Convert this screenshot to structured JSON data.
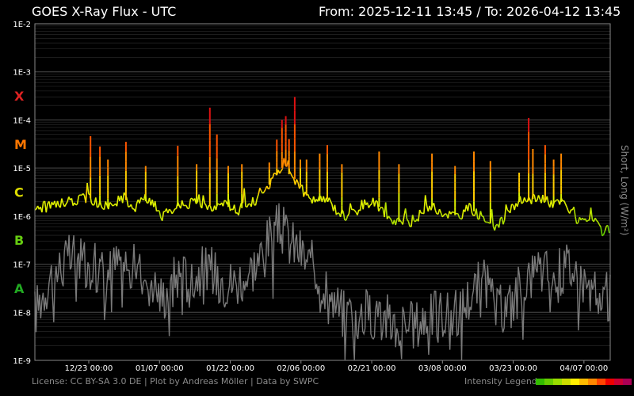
{
  "header": {
    "title": "GOES X-Ray Flux - UTC",
    "range": "From: 2025-12-11 13:45  /  To: 2026-04-12 13:45"
  },
  "footer": {
    "license": "License: CC BY-SA 3.0 DE | Plot by Andreas Möller | Data by SWPC",
    "legend_label": "Intensity Legend",
    "legend_colors": [
      "#33bb00",
      "#66cc00",
      "#99dd00",
      "#ccdd00",
      "#ffee00",
      "#ffbb00",
      "#ff8800",
      "#ff4400",
      "#ee0000",
      "#cc0033",
      "#aa0055"
    ]
  },
  "chart_data": {
    "type": "line",
    "ylabel": "Short, Long (W/m²)",
    "yscale": "log",
    "ylim": [
      "1E-9",
      "1E-2"
    ],
    "y_ticks": [
      "1E-2",
      "1E-3",
      "1E-4",
      "1E-5",
      "1E-6",
      "1E-7",
      "1E-8",
      "1E-9"
    ],
    "x_ticks": [
      "12/23 00:00",
      "01/07 00:00",
      "01/22 00:00",
      "02/06 00:00",
      "02/21 00:00",
      "03/08 00:00",
      "03/23 00:00",
      "04/07 00:00"
    ],
    "xlim": [
      "2025-12-11 13:45",
      "2026-04-12 13:45"
    ],
    "classes": [
      {
        "label": "X",
        "color": "#dd2222",
        "decade": "1E-4"
      },
      {
        "label": "M",
        "color": "#ff7700",
        "decade": "1E-5"
      },
      {
        "label": "C",
        "color": "#dddd00",
        "decade": "1E-6"
      },
      {
        "label": "B",
        "color": "#66cc11",
        "decade": "1E-7"
      },
      {
        "label": "A",
        "color": "#22aa22",
        "decade": "1E-8"
      }
    ],
    "colors": {
      "long": "#ccee00",
      "short": "#7a7a7a",
      "grid": "#555555"
    },
    "series": [
      {
        "key": "long",
        "days": [
          0,
          4,
          8,
          11.5,
          13,
          15,
          17,
          19,
          20,
          21.5,
          22,
          24,
          26,
          27,
          30,
          32,
          34,
          36,
          38,
          40,
          42,
          43,
          45,
          47,
          49,
          50.5,
          52,
          53,
          54,
          55,
          56,
          57,
          58,
          60,
          62,
          64,
          66,
          68,
          70,
          72,
          74,
          76,
          78,
          80,
          82,
          84,
          86,
          88,
          90,
          92,
          94,
          96,
          98,
          100,
          102,
          104,
          105,
          106,
          108,
          110,
          112,
          114,
          116,
          118,
          120,
          122
        ],
        "values": [
          1.3e-06,
          1.7e-06,
          2e-06,
          2.5e-06,
          1.9e-06,
          1.5e-06,
          1.9e-06,
          2.5e-06,
          1.5e-06,
          1.4e-06,
          2.2e-06,
          2e-06,
          1.5e-06,
          1e-06,
          1.6e-06,
          1.7e-06,
          2e-06,
          1.7e-06,
          1.6e-06,
          1.7e-06,
          1.4e-06,
          1.3e-06,
          1.7e-06,
          2.2e-06,
          3.5e-06,
          6e-06,
          9e-06,
          1.2e-05,
          7e-06,
          6e-06,
          5e-06,
          3e-06,
          2.5e-06,
          2e-06,
          2.3e-06,
          1.3e-06,
          1e-06,
          1.2e-06,
          1.8e-06,
          2e-06,
          1.2e-06,
          7e-07,
          8e-07,
          7e-07,
          1.2e-06,
          1.6e-06,
          1.2e-06,
          1.1e-06,
          1e-06,
          1.5e-06,
          1.1e-06,
          8e-07,
          6e-07,
          1e-06,
          1.8e-06,
          2.3e-06,
          2e-06,
          2.5e-06,
          2.2e-06,
          1.8e-06,
          2e-06,
          1e-06,
          7e-07,
          9e-07,
          5e-07,
          5e-07
        ]
      },
      {
        "key": "short",
        "days": [
          0,
          3,
          6,
          9,
          12,
          15,
          18,
          21,
          24,
          27,
          30,
          33,
          36,
          39,
          42,
          45,
          48,
          50,
          52,
          54,
          56,
          58,
          60,
          62,
          65,
          68,
          71,
          74,
          77,
          80,
          83,
          86,
          89,
          92,
          95,
          98,
          101,
          104,
          107,
          110,
          113,
          116,
          119,
          122
        ],
        "values": [
          1e-08,
          5e-08,
          1e-07,
          1.6e-07,
          1e-07,
          6e-08,
          1.2e-07,
          8e-08,
          5e-08,
          2e-08,
          6e-08,
          5e-08,
          8e-08,
          6e-08,
          4e-08,
          6e-08,
          1.5e-07,
          4e-07,
          6e-07,
          3e-07,
          2e-07,
          1e-07,
          8e-08,
          3e-08,
          1e-08,
          8e-09,
          1e-08,
          8e-09,
          5e-09,
          5e-09,
          8e-09,
          1e-08,
          8e-09,
          2e-08,
          5e-08,
          1e-08,
          1.5e-08,
          5e-08,
          8e-08,
          6e-08,
          1e-07,
          5e-08,
          2e-08,
          2e-08
        ]
      }
    ],
    "flares": [
      {
        "day": 11.8,
        "peak": 4.6e-05
      },
      {
        "day": 13.8,
        "peak": 2.8e-05
      },
      {
        "day": 15.5,
        "peak": 1.5e-05
      },
      {
        "day": 19.3,
        "peak": 3.5e-05
      },
      {
        "day": 23.5,
        "peak": 1.1e-05
      },
      {
        "day": 30.3,
        "peak": 2.9e-05
      },
      {
        "day": 34.3,
        "peak": 1.2e-05
      },
      {
        "day": 37.1,
        "peak": 0.00018
      },
      {
        "day": 38.6,
        "peak": 5e-05
      },
      {
        "day": 41.0,
        "peak": 1.1e-05
      },
      {
        "day": 43.9,
        "peak": 1.2e-05
      },
      {
        "day": 49.7,
        "peak": 1.3e-05
      },
      {
        "day": 51.3,
        "peak": 3.9e-05
      },
      {
        "day": 52.4,
        "peak": 0.0001
      },
      {
        "day": 53.2,
        "peak": 0.00012
      },
      {
        "day": 53.9,
        "peak": 4e-05
      },
      {
        "day": 55.1,
        "peak": 0.0003
      },
      {
        "day": 56.3,
        "peak": 1.5e-05
      },
      {
        "day": 57.6,
        "peak": 1.5e-05
      },
      {
        "day": 60.4,
        "peak": 2e-05
      },
      {
        "day": 62.0,
        "peak": 3e-05
      },
      {
        "day": 65.1,
        "peak": 1.2e-05
      },
      {
        "day": 73.0,
        "peak": 2.2e-05
      },
      {
        "day": 77.2,
        "peak": 1.2e-05
      },
      {
        "day": 84.2,
        "peak": 2e-05
      },
      {
        "day": 89.1,
        "peak": 1.1e-05
      },
      {
        "day": 93.1,
        "peak": 2.2e-05
      },
      {
        "day": 96.6,
        "peak": 1.4e-05
      },
      {
        "day": 102.7,
        "peak": 8e-06
      },
      {
        "day": 104.7,
        "peak": 0.00011
      },
      {
        "day": 105.6,
        "peak": 2.5e-05
      },
      {
        "day": 108.2,
        "peak": 3e-05
      },
      {
        "day": 110.0,
        "peak": 1.5e-05
      },
      {
        "day": 111.6,
        "peak": 2e-05
      }
    ]
  }
}
